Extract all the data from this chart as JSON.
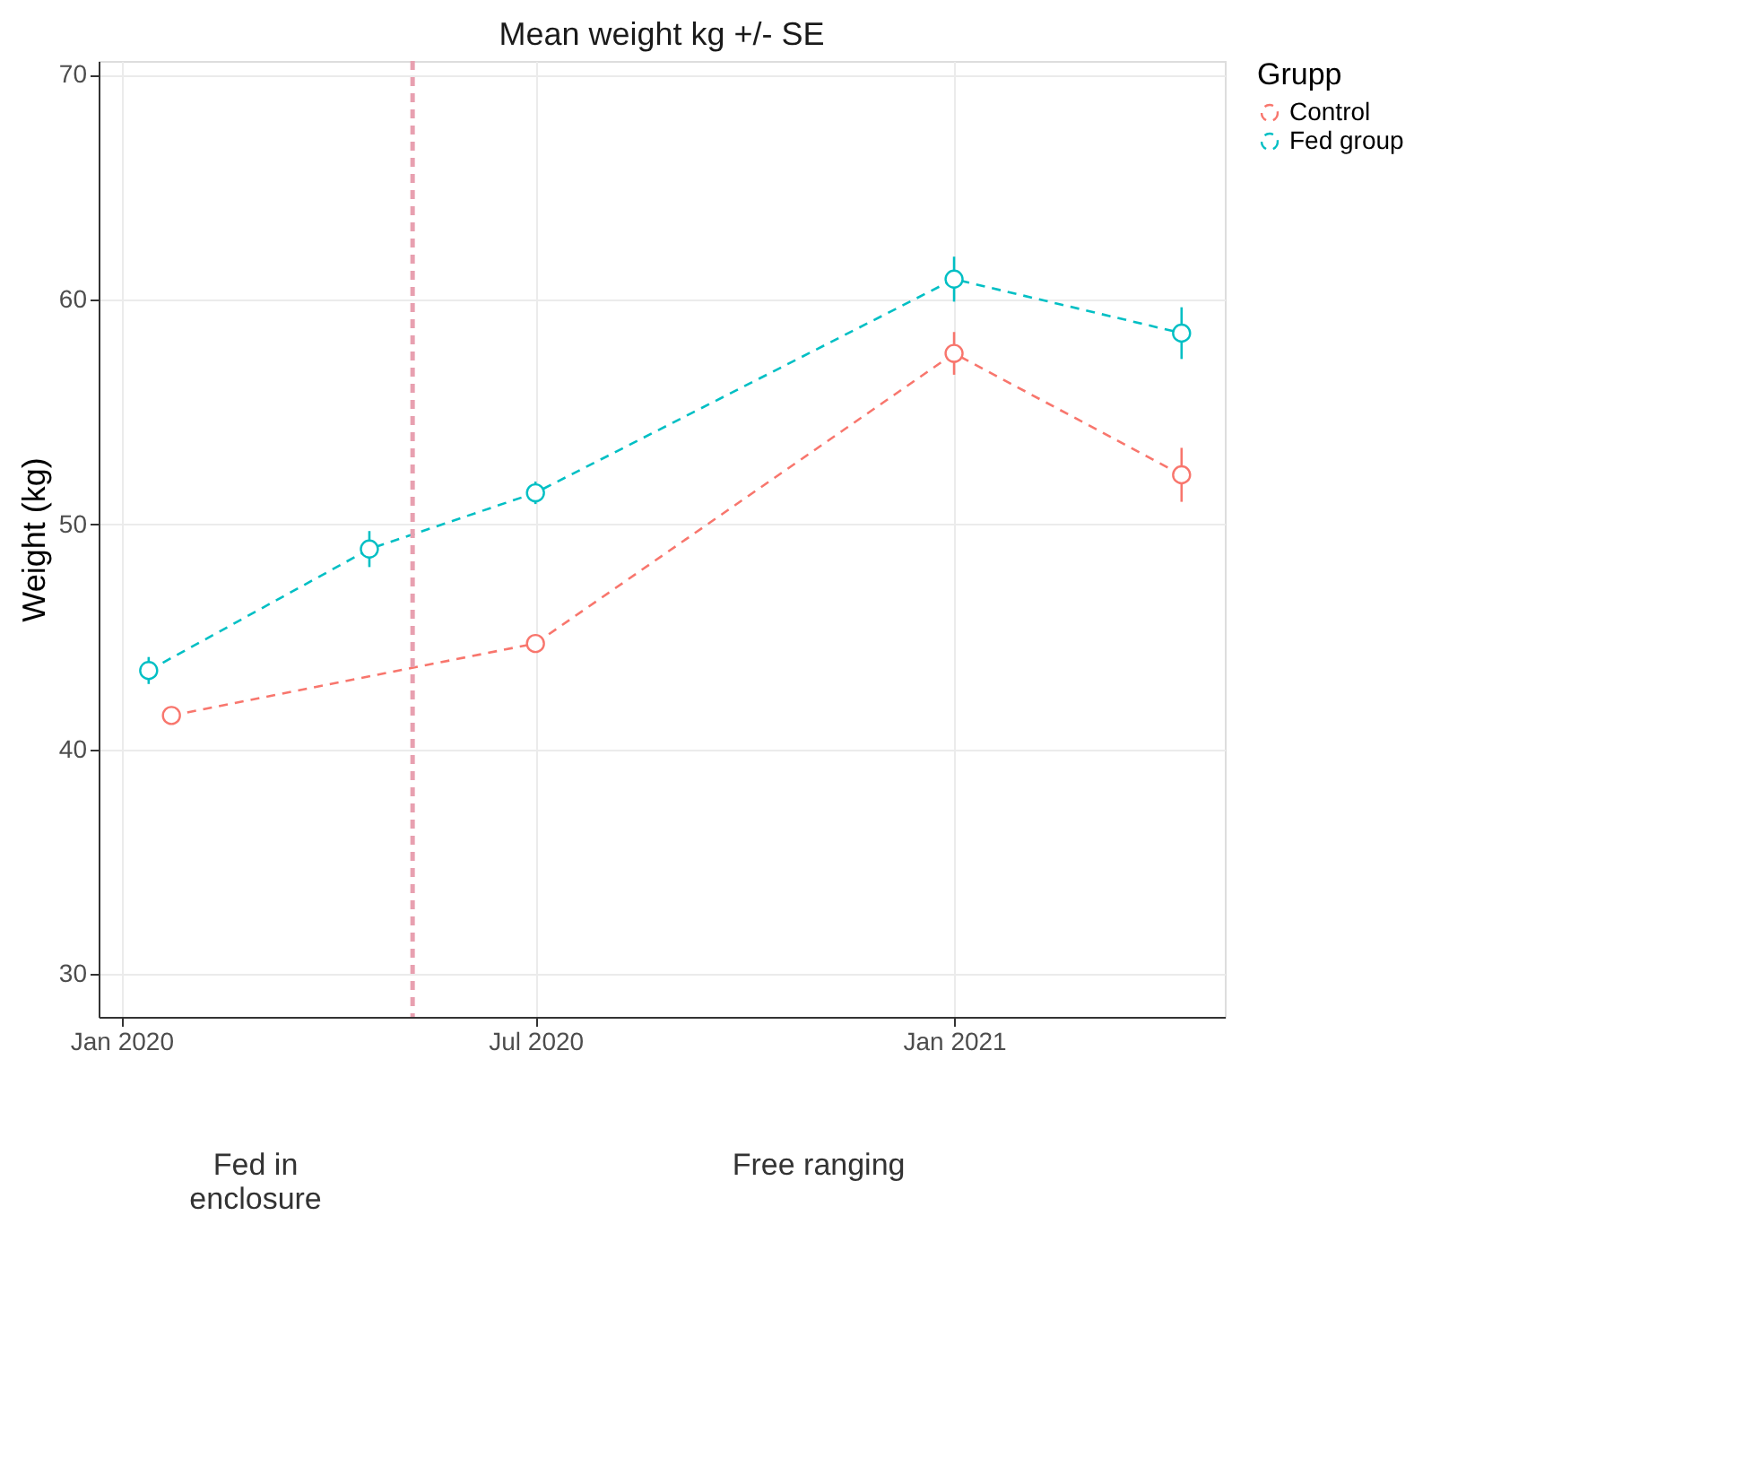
{
  "chart_data": {
    "type": "line",
    "title": "Mean weight kg +/- SE",
    "ylabel": "Weight (kg)",
    "legend_title": "Grupp",
    "xlim": [
      "2019-12-22",
      "2021-04-30"
    ],
    "ylim": [
      28.1,
      70.6
    ],
    "xticks": [
      {
        "value": "2020-01-01",
        "label": "Jan 2020"
      },
      {
        "value": "2020-07-01",
        "label": "Jul 2020"
      },
      {
        "value": "2021-01-01",
        "label": "Jan 2021"
      }
    ],
    "yticks": [
      30,
      40,
      50,
      60,
      70
    ],
    "grid": true,
    "legend": "right",
    "marker": "circle",
    "line_style": "dashed",
    "series": [
      {
        "name": "Control",
        "color": "#f8766d",
        "x": [
          "2020-01-23",
          "2020-07-01",
          "2021-01-01",
          "2021-04-11"
        ],
        "values": [
          41.5,
          44.7,
          57.6,
          52.2
        ],
        "errors": [
          0.4,
          0.4,
          0.95,
          1.2
        ]
      },
      {
        "name": "Fed group",
        "color": "#00bfc4",
        "x": [
          "2020-01-13",
          "2020-04-19",
          "2020-07-01",
          "2021-01-01",
          "2021-04-11"
        ],
        "values": [
          43.5,
          48.9,
          51.4,
          60.9,
          58.5
        ],
        "errors": [
          0.6,
          0.8,
          0.5,
          1.0,
          1.15
        ]
      }
    ],
    "ref_lines": [
      {
        "axis": "x",
        "value": "2020-05-08",
        "color": "#e8a0b0",
        "line_style": "dashed"
      }
    ],
    "annotations": [
      "Fed in\nenclosure",
      "Free ranging"
    ]
  }
}
